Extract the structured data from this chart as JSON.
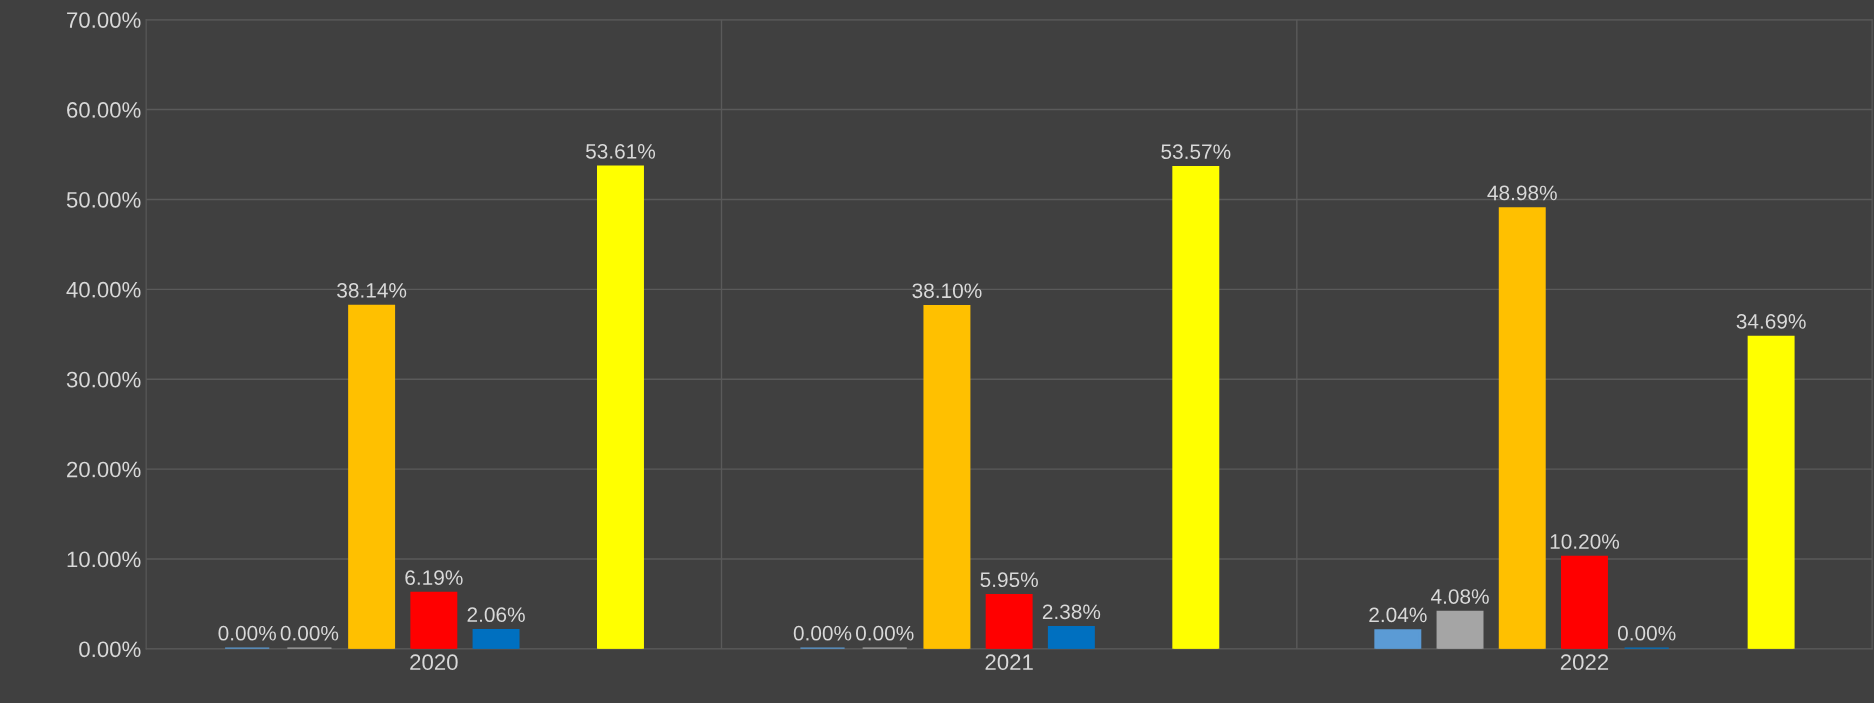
{
  "chart_data": {
    "type": "bar",
    "categories": [
      "2020",
      "2021",
      "2022"
    ],
    "series": [
      {
        "color": "#5b9bd5",
        "values": [
          0.0,
          0.0,
          2.04
        ],
        "value_labels": [
          "0.00%",
          "0.00%",
          "2.04%"
        ]
      },
      {
        "color": "#a5a5a5",
        "values": [
          0.0,
          0.0,
          4.08
        ],
        "value_labels": [
          "0.00%",
          "0.00%",
          "4.08%"
        ]
      },
      {
        "color": "#ffc000",
        "values": [
          38.14,
          38.1,
          48.98
        ],
        "value_labels": [
          "38.14%",
          "38.10%",
          "48.98%"
        ]
      },
      {
        "color": "#ff0000",
        "values": [
          6.19,
          5.95,
          10.2
        ],
        "value_labels": [
          "6.19%",
          "5.95%",
          "10.20%"
        ]
      },
      {
        "color": "#0070c0",
        "values": [
          2.06,
          2.38,
          0.0
        ],
        "value_labels": [
          "2.06%",
          "2.38%",
          "0.00%"
        ]
      },
      {
        "color": "#70ad47",
        "values": [
          null,
          null,
          null
        ],
        "value_labels": [
          null,
          null,
          null
        ]
      },
      {
        "color": "#ffff00",
        "values": [
          53.61,
          53.57,
          34.69
        ],
        "value_labels": [
          "53.61%",
          "53.57%",
          "34.69%"
        ]
      }
    ],
    "ylim": [
      0,
      70
    ],
    "yticks": [
      {
        "value": 0,
        "label": "0.00%"
      },
      {
        "value": 10,
        "label": "10.00%"
      },
      {
        "value": 20,
        "label": "20.00%"
      },
      {
        "value": 30,
        "label": "30.00%"
      },
      {
        "value": 40,
        "label": "40.00%"
      },
      {
        "value": 50,
        "label": "50.00%"
      },
      {
        "value": 60,
        "label": "60.00%"
      },
      {
        "value": 70,
        "label": "70.00%"
      }
    ],
    "grid": true
  }
}
